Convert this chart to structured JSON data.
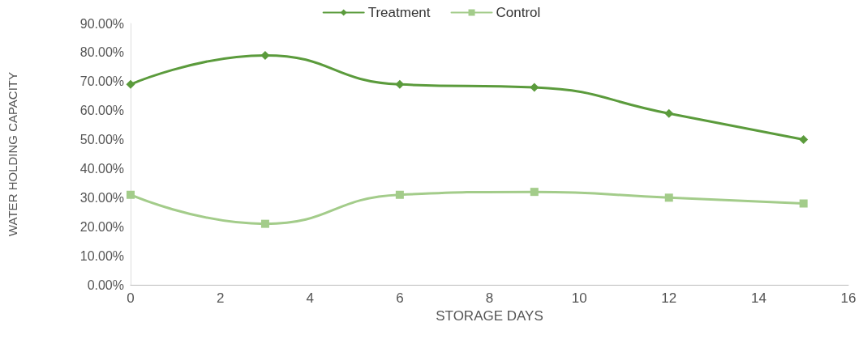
{
  "chart_data": {
    "type": "line",
    "xlabel": "STORAGE DAYS",
    "ylabel": "WATER HOLDING CAPACITY",
    "x": [
      0,
      3,
      6,
      9,
      12,
      15
    ],
    "series": [
      {
        "name": "Treatment",
        "color": "#5b9b3c",
        "values": [
          69,
          79,
          69,
          68,
          59,
          50
        ],
        "marker": "diamond"
      },
      {
        "name": "Control",
        "color": "#a3cc8a",
        "values": [
          31,
          21,
          31,
          32,
          30,
          28
        ],
        "marker": "square"
      }
    ],
    "xlim": [
      0,
      16
    ],
    "xticks": [
      0,
      2,
      4,
      6,
      8,
      10,
      12,
      14,
      16
    ],
    "ylim": [
      0,
      90
    ],
    "yticks": [
      {
        "value": 0,
        "label": "0.00%"
      },
      {
        "value": 10,
        "label": "10.00%"
      },
      {
        "value": 20,
        "label": "20.00%"
      },
      {
        "value": 30,
        "label": "30.00%"
      },
      {
        "value": 40,
        "label": "40.00%"
      },
      {
        "value": 50,
        "label": "50.00%"
      },
      {
        "value": 60,
        "label": "60.00%"
      },
      {
        "value": 70,
        "label": "70.00%"
      },
      {
        "value": 80,
        "label": "80.00%"
      },
      {
        "value": 90,
        "label": "90.00%"
      }
    ],
    "grid": false,
    "legend": "top",
    "line_style": "solid"
  }
}
